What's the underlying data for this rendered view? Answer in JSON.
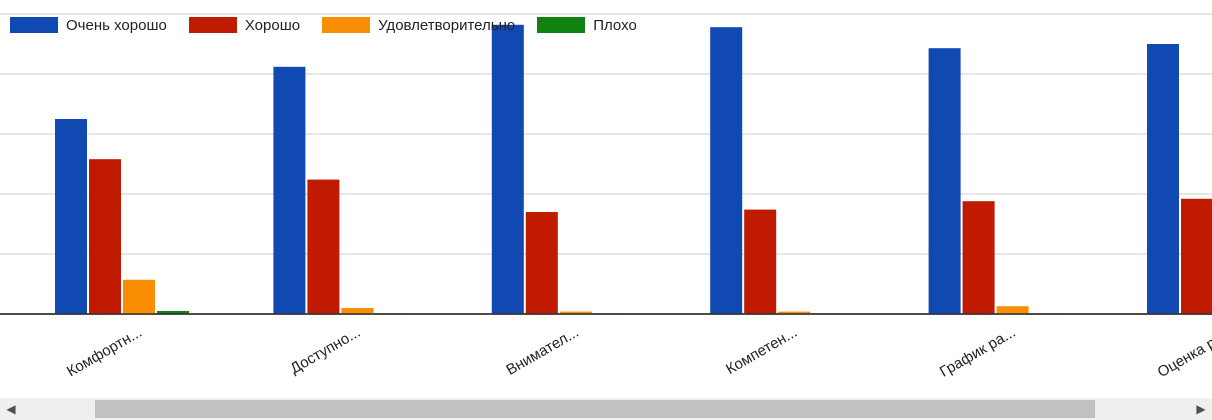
{
  "chart_data": {
    "type": "bar",
    "categories": [
      "Комфортн...",
      "Доступно...",
      "Внимател...",
      "Компетен...",
      "График ра...",
      "Оценка ре..."
    ],
    "series": [
      {
        "name": "Очень хорошо",
        "color": "#1149b3",
        "values": [
          325,
          412,
          482,
          478,
          443,
          450
        ]
      },
      {
        "name": "Хорошо",
        "color": "#c01a00",
        "values": [
          258,
          224,
          170,
          174,
          188,
          192
        ]
      },
      {
        "name": "Удовлетворительно",
        "color": "#f98e05",
        "values": [
          57,
          10,
          4,
          4,
          13,
          null
        ]
      },
      {
        "name": "Плохо",
        "color": "#118212",
        "values": [
          5,
          1,
          1,
          1,
          1,
          null
        ]
      }
    ],
    "ylim": [
      0,
      500
    ],
    "grid": true,
    "legend_position": "top"
  },
  "scrollbar": {
    "left_arrow": "◀",
    "right_arrow": "▶"
  }
}
